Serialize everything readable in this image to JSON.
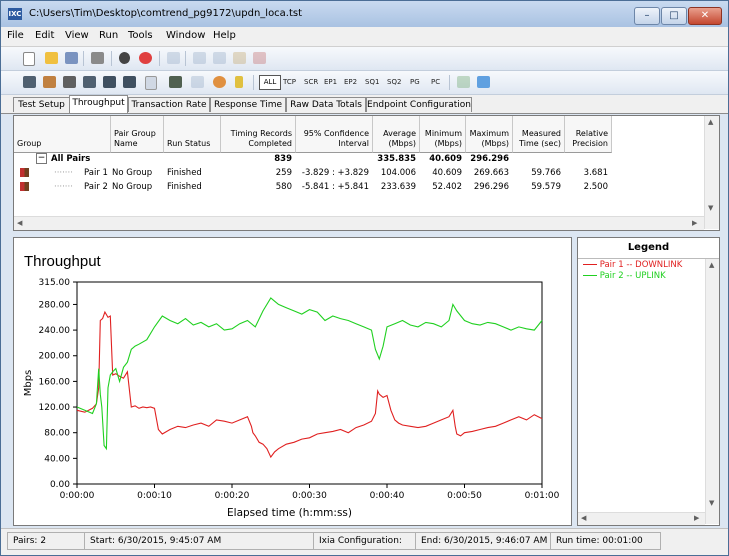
{
  "window": {
    "title": "C:\\Users\\Tim\\Desktop\\comtrend_pg9172\\updn_loca.tst",
    "app_icon_text": "IXC"
  },
  "menu": [
    "File",
    "Edit",
    "View",
    "Run",
    "Tools",
    "Window",
    "Help"
  ],
  "toolbar2_labels": [
    "ALL",
    "TCP",
    "SCR",
    "EP1",
    "EP2",
    "SQ1",
    "SQ2",
    "PG",
    "PC"
  ],
  "tabs": [
    "Test Setup",
    "Throughput",
    "Transaction Rate",
    "Response Time",
    "Raw Data Totals",
    "Endpoint Configuration"
  ],
  "active_tab": "Throughput",
  "table": {
    "headers": {
      "group": "Group",
      "pair_group_name_1": "Pair Group",
      "pair_group_name_2": "Name",
      "run_status": "Run Status",
      "timing_1": "Timing Records",
      "timing_2": "Completed",
      "ci_1": "95% Confidence",
      "ci_2": "Interval",
      "avg_1": "Average",
      "avg_2": "(Mbps)",
      "min_1": "Minimum",
      "min_2": "(Mbps)",
      "max_1": "Maximum",
      "max_2": "(Mbps)",
      "meas_1": "Measured",
      "meas_2": "Time (sec)",
      "rel_1": "Relative",
      "rel_2": "Precision"
    },
    "all_pairs": {
      "label": "All Pairs",
      "expand": "−",
      "timing": "839",
      "average": "335.835",
      "minimum": "40.609",
      "maximum": "296.296"
    },
    "rows": [
      {
        "pair": "Pair 1",
        "group": "No Group",
        "status": "Finished",
        "timing": "259",
        "ci": "-3.829 : +3.829",
        "average": "104.006",
        "minimum": "40.609",
        "maximum": "269.663",
        "measured": "59.766",
        "precision": "3.681"
      },
      {
        "pair": "Pair 2",
        "group": "No Group",
        "status": "Finished",
        "timing": "580",
        "ci": "-5.841 : +5.841",
        "average": "233.639",
        "minimum": "52.402",
        "maximum": "296.296",
        "measured": "59.579",
        "precision": "2.500"
      }
    ]
  },
  "legend": {
    "title": "Legend",
    "items": [
      {
        "label": "Pair 1 -- DOWNLINK",
        "color": "#e02020"
      },
      {
        "label": "Pair 2 -- UPLINK",
        "color": "#20d020"
      }
    ]
  },
  "chart_data": {
    "type": "line",
    "title": "Throughput",
    "xlabel": "Elapsed time (h:mm:ss)",
    "ylabel": "Mbps",
    "xlim": [
      0,
      60
    ],
    "ylim": [
      0,
      315
    ],
    "x_tick_labels": [
      "0:00:00",
      "0:00:10",
      "0:00:20",
      "0:00:30",
      "0:00:40",
      "0:00:50",
      "0:01:00"
    ],
    "y_tick_labels": [
      "0.00",
      "40.00",
      "80.00",
      "120.00",
      "160.00",
      "200.00",
      "240.00",
      "280.00",
      "315.00"
    ],
    "y_tick_values": [
      0,
      40,
      80,
      120,
      160,
      200,
      240,
      280,
      315
    ],
    "grid": false,
    "series": [
      {
        "name": "Pair 1 -- DOWNLINK",
        "color": "#e02020",
        "x": [
          0,
          1,
          2,
          2.5,
          2.8,
          3.0,
          3.3,
          3.6,
          4.0,
          4.3,
          4.6,
          5.0,
          5.5,
          6.0,
          6.5,
          7.0,
          7.5,
          8.0,
          8.5,
          9.0,
          9.5,
          10.0,
          10.5,
          11.0,
          12.0,
          13.0,
          14.0,
          15.0,
          16.0,
          17.0,
          18.0,
          19.0,
          20.0,
          21.0,
          22.0,
          22.5,
          22.7,
          23.0,
          23.5,
          24.0,
          24.5,
          25.0,
          25.5,
          26.0,
          27.0,
          28.0,
          29.0,
          30.0,
          31.0,
          32.0,
          33.0,
          34.0,
          35.0,
          36.0,
          37.0,
          38.0,
          38.5,
          38.8,
          39.0,
          39.5,
          40.0,
          40.5,
          41.0,
          41.5,
          42.0,
          43.0,
          44.0,
          45.0,
          46.0,
          47.0,
          48.0,
          48.5,
          48.8,
          49.0,
          49.5,
          50.0,
          51.0,
          52.0,
          53.0,
          54.0,
          55.0,
          56.0,
          57.0,
          58.0,
          59.0,
          60.0
        ],
        "y": [
          115,
          112,
          118,
          125,
          150,
          255,
          258,
          268,
          260,
          262,
          170,
          172,
          168,
          165,
          175,
          120,
          122,
          118,
          120,
          119,
          120,
          118,
          85,
          78,
          85,
          90,
          88,
          92,
          95,
          90,
          100,
          98,
          95,
          100,
          105,
          90,
          80,
          75,
          65,
          62,
          55,
          42,
          50,
          55,
          62,
          65,
          70,
          72,
          78,
          80,
          82,
          85,
          80,
          88,
          92,
          98,
          110,
          145,
          140,
          135,
          138,
          115,
          100,
          95,
          92,
          90,
          88,
          90,
          95,
          100,
          105,
          115,
          90,
          78,
          75,
          80,
          82,
          85,
          88,
          90,
          95,
          100,
          105,
          100,
          108,
          102
        ]
      },
      {
        "name": "Pair 2 -- UPLINK",
        "color": "#20d020",
        "x": [
          0,
          1,
          2,
          2.5,
          2.8,
          3.0,
          3.2,
          3.5,
          3.8,
          4.0,
          4.3,
          4.6,
          5.0,
          5.5,
          6.0,
          6.5,
          7.0,
          7.5,
          8.0,
          9.0,
          10.0,
          11.0,
          12.0,
          13.0,
          14.0,
          15.0,
          16.0,
          17.0,
          18.0,
          19.0,
          20.0,
          21.0,
          22.0,
          23.0,
          24.0,
          25.0,
          25.5,
          26.0,
          27.0,
          28.0,
          29.0,
          30.0,
          31.0,
          32.0,
          33.0,
          34.0,
          35.0,
          36.0,
          37.0,
          38.0,
          38.5,
          39.0,
          39.5,
          40.0,
          41.0,
          42.0,
          43.0,
          44.0,
          45.0,
          46.0,
          47.0,
          48.0,
          48.5,
          49.0,
          50.0,
          51.0,
          52.0,
          53.0,
          54.0,
          55.0,
          56.0,
          57.0,
          58.0,
          59.0,
          60.0
        ],
        "y": [
          120,
          115,
          110,
          125,
          180,
          140,
          120,
          60,
          55,
          150,
          170,
          175,
          180,
          160,
          182,
          190,
          210,
          215,
          218,
          225,
          245,
          262,
          255,
          250,
          258,
          248,
          252,
          245,
          250,
          240,
          242,
          250,
          255,
          245,
          270,
          290,
          285,
          280,
          275,
          270,
          265,
          272,
          268,
          255,
          262,
          258,
          255,
          250,
          245,
          240,
          210,
          195,
          215,
          245,
          250,
          255,
          248,
          245,
          252,
          250,
          245,
          255,
          280,
          270,
          255,
          250,
          248,
          252,
          250,
          245,
          240,
          245,
          242,
          240,
          255
        ]
      }
    ]
  },
  "status_bar": {
    "pairs": "Pairs: 2",
    "start": "Start: 6/30/2015, 9:45:07 AM",
    "ixia": "Ixia Configuration:",
    "end": "End: 6/30/2015, 9:46:07 AM",
    "runtime": "Run time: 00:01:00"
  }
}
